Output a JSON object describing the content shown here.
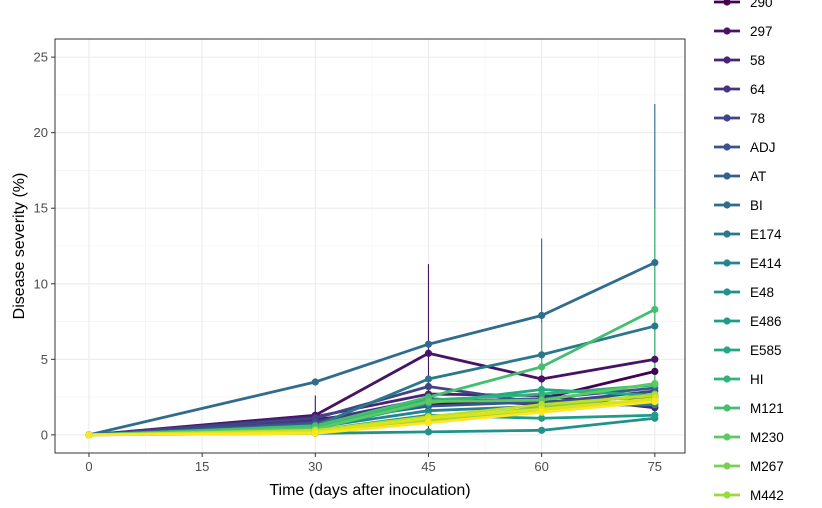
{
  "chart_data": {
    "type": "line",
    "xlabel": "Time (days after inoculation)",
    "ylabel": "Disease severity (%)",
    "xlim": [
      -4.5,
      79
    ],
    "ylim": [
      -1.2,
      26.2
    ],
    "x_ticks": [
      0,
      15,
      30,
      45,
      60,
      75
    ],
    "y_ticks": [
      0,
      5,
      10,
      15,
      20,
      25
    ],
    "grid": true,
    "legend_position": "right",
    "x": [
      0,
      30,
      45,
      60,
      75
    ],
    "series": [
      {
        "name": "290",
        "color": "#440154",
        "values": [
          0,
          1.0,
          2.0,
          2.4,
          4.2
        ]
      },
      {
        "name": "297",
        "color": "#471365",
        "values": [
          0,
          1.3,
          5.4,
          3.7,
          5.0
        ]
      },
      {
        "name": "58",
        "color": "#482475",
        "values": [
          0,
          1.2,
          2.7,
          2.6,
          1.8
        ]
      },
      {
        "name": "64",
        "color": "#463480",
        "values": [
          0,
          0.9,
          2.4,
          2.0,
          2.2
        ]
      },
      {
        "name": "78",
        "color": "#414487",
        "values": [
          0,
          1.1,
          3.2,
          2.1,
          2.9
        ]
      },
      {
        "name": "ADJ",
        "color": "#3b528b",
        "values": [
          0,
          0.8,
          1.9,
          2.2,
          2.5
        ]
      },
      {
        "name": "AT",
        "color": "#355f8d",
        "values": [
          0,
          0.7,
          2.2,
          2.4,
          3.1
        ]
      },
      {
        "name": "BI",
        "color": "#2f6c8e",
        "values": [
          0,
          3.5,
          6.0,
          7.9,
          11.4
        ]
      },
      {
        "name": "E174",
        "color": "#2a788e",
        "values": [
          0,
          0.6,
          3.7,
          5.3,
          7.2
        ]
      },
      {
        "name": "E414",
        "color": "#25848e",
        "values": [
          0,
          0.5,
          1.6,
          1.9,
          2.0
        ]
      },
      {
        "name": "E48",
        "color": "#21918c",
        "values": [
          0,
          0.1,
          0.2,
          0.3,
          1.1
        ]
      },
      {
        "name": "E486",
        "color": "#1e9c89",
        "values": [
          0,
          0.3,
          1.3,
          1.1,
          1.3
        ]
      },
      {
        "name": "E585",
        "color": "#22a884",
        "values": [
          0,
          0.4,
          2.1,
          3.0,
          2.6
        ]
      },
      {
        "name": "HI",
        "color": "#2fb47c",
        "values": [
          0,
          0.5,
          2.3,
          2.7,
          3.3
        ]
      },
      {
        "name": "M121",
        "color": "#44bf70",
        "values": [
          0,
          0.6,
          2.5,
          4.5,
          8.3
        ]
      },
      {
        "name": "M230",
        "color": "#5ec962",
        "values": [
          0,
          0.4,
          2.2,
          2.3,
          3.4
        ]
      },
      {
        "name": "M267",
        "color": "#7ad151",
        "values": [
          0,
          0.3,
          1.0,
          1.8,
          2.7
        ]
      },
      {
        "name": "M442",
        "color": "#9bd93c",
        "values": [
          0,
          0.2,
          0.9,
          1.6,
          2.3
        ]
      },
      {
        "name": "",
        "color": "#bddf26",
        "values": [
          0,
          0.3,
          1.2,
          2.0,
          2.6
        ]
      },
      {
        "name": "",
        "color": "#dfe318",
        "values": [
          0,
          0.2,
          1.1,
          1.7,
          2.4
        ]
      },
      {
        "name": "",
        "color": "#fde725",
        "values": [
          0,
          0.1,
          0.8,
          1.5,
          2.2
        ]
      }
    ],
    "error_bars": [
      {
        "series": "297",
        "x": 30,
        "low": 0.0,
        "high": 2.6
      },
      {
        "series": "297",
        "x": 45,
        "low": 0.0,
        "high": 11.3
      },
      {
        "series": "BI",
        "x": 60,
        "low": 2.8,
        "high": 13.0
      },
      {
        "series": "BI",
        "x": 75,
        "low": 0.9,
        "high": 21.9
      },
      {
        "series": "M121",
        "x": 60,
        "low": 1.5,
        "high": 7.5
      },
      {
        "series": "M121",
        "x": 75,
        "low": 1.8,
        "high": 15.0
      }
    ]
  }
}
